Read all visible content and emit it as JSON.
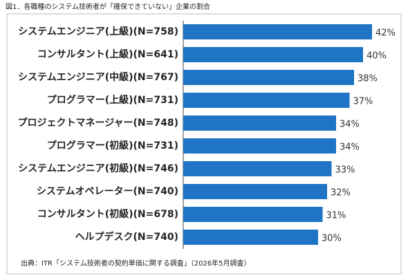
{
  "chart_data": {
    "type": "bar",
    "orientation": "horizontal",
    "title": "図1．各職種のシステム技術者が「確保できていない」企業の割合",
    "source": "出典：ITR「システム技術者の契約単価に関する調査」（2026年5月調査）",
    "categories": [
      "システムエンジニア(上級)(N=758)",
      "コンサルタント(上級)(N=641)",
      "システムエンジニア(中級)(N=767)",
      "プログラマー(上級)(N=731)",
      "プロジェクトマネージャー(N=748)",
      "プログラマー(初級)(N=731)",
      "システムエンジニア(初級)(N=746)",
      "システムオペレーター(N=740)",
      "コンサルタント(初級)(N=678)",
      "ヘルプデスク(N=740)"
    ],
    "values": [
      42,
      40,
      38,
      37,
      34,
      34,
      33,
      32,
      31,
      30
    ],
    "value_labels": [
      "42%",
      "40%",
      "38%",
      "37%",
      "34%",
      "34%",
      "33%",
      "32%",
      "31%",
      "30%"
    ],
    "color": "#1f74c6"
  }
}
